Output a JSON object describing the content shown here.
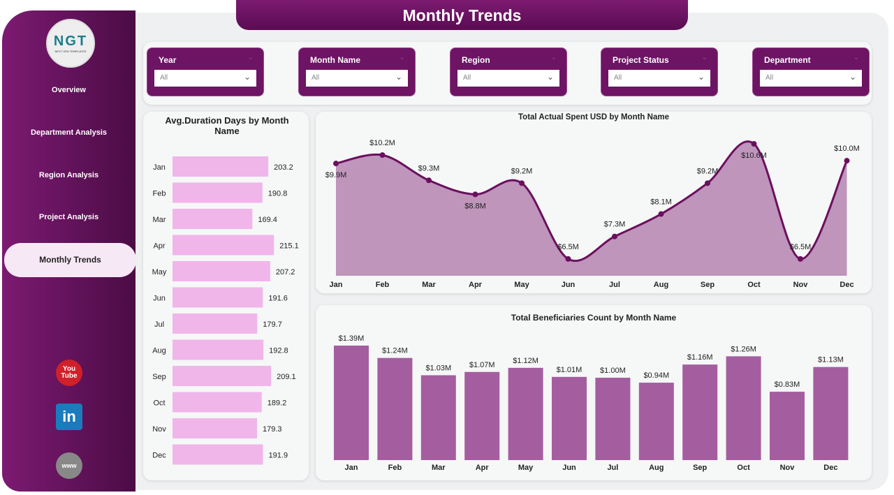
{
  "title": "Monthly Trends",
  "logo": {
    "text": "NGT",
    "sub": "NEXT GEN TEMPLATES"
  },
  "sidebar": {
    "items": [
      {
        "label": "Overview"
      },
      {
        "label": "Department Analysis"
      },
      {
        "label": "Region Analysis"
      },
      {
        "label": "Project Analysis"
      },
      {
        "label": "Monthly Trends",
        "active": true
      }
    ],
    "social": [
      {
        "icon": "youtube-icon",
        "label": "You Tube"
      },
      {
        "icon": "linkedin-icon",
        "label": "in"
      },
      {
        "icon": "globe-icon",
        "label": "www"
      }
    ]
  },
  "filters": [
    {
      "label": "Year",
      "value": "All"
    },
    {
      "label": "Month Name",
      "value": "All"
    },
    {
      "label": "Region",
      "value": "All"
    },
    {
      "label": "Project Status",
      "value": "All"
    },
    {
      "label": "Department",
      "value": "All"
    }
  ],
  "colors": {
    "primary": "#6d1464",
    "hbar": "#f0b6ea",
    "area": "#bf95bb",
    "line": "#6b0f5e",
    "vbar": "#a45ea0"
  },
  "chart_data": [
    {
      "type": "bar",
      "orientation": "horizontal",
      "title": "Avg.Duration Days by Month Name",
      "categories": [
        "Jan",
        "Feb",
        "Mar",
        "Apr",
        "May",
        "Jun",
        "Jul",
        "Aug",
        "Sep",
        "Oct",
        "Nov",
        "Dec"
      ],
      "values": [
        203.2,
        190.8,
        169.4,
        215.1,
        207.2,
        191.6,
        179.7,
        192.8,
        209.1,
        189.2,
        179.3,
        191.9
      ],
      "labels": [
        "203.2",
        "190.8",
        "169.4",
        "215.1",
        "207.2",
        "191.6",
        "179.7",
        "192.8",
        "209.1",
        "189.2",
        "179.3",
        "191.9"
      ]
    },
    {
      "type": "area",
      "title": "Total Actual Spent USD by Month Name",
      "categories": [
        "Jan",
        "Feb",
        "Mar",
        "Apr",
        "May",
        "Jun",
        "Jul",
        "Aug",
        "Sep",
        "Oct",
        "Nov",
        "Dec"
      ],
      "values": [
        9.9,
        10.2,
        9.3,
        8.8,
        9.2,
        6.5,
        7.3,
        8.1,
        9.2,
        10.6,
        6.5,
        10.0
      ],
      "labels": [
        "$9.9M",
        "$10.2M",
        "$9.3M",
        "$8.8M",
        "$9.2M",
        "$6.5M",
        "$7.3M",
        "$8.1M",
        "$9.2M",
        "$10.6M",
        "$6.5M",
        "$10.0M"
      ],
      "unit": "USD millions",
      "ylim": [
        5.9,
        10.7
      ]
    },
    {
      "type": "bar",
      "title": "Total Beneficiaries Count by Month Name",
      "categories": [
        "Jan",
        "Feb",
        "Mar",
        "Apr",
        "May",
        "Jun",
        "Jul",
        "Aug",
        "Sep",
        "Oct",
        "Nov",
        "Dec"
      ],
      "values": [
        1.39,
        1.24,
        1.03,
        1.07,
        1.12,
        1.01,
        1.0,
        0.94,
        1.16,
        1.26,
        0.83,
        1.13
      ],
      "labels": [
        "$1.39M",
        "$1.24M",
        "$1.03M",
        "$1.07M",
        "$1.12M",
        "$1.01M",
        "$1.00M",
        "$0.94M",
        "$1.16M",
        "$1.26M",
        "$0.83M",
        "$1.13M"
      ],
      "unit": "millions",
      "ylim": [
        0,
        1.39
      ]
    }
  ]
}
